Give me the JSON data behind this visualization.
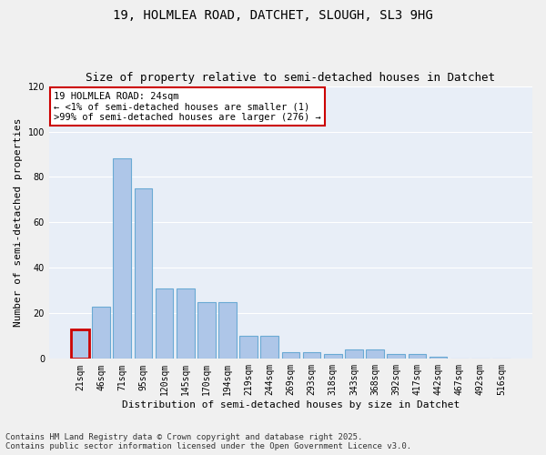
{
  "title1": "19, HOLMLEA ROAD, DATCHET, SLOUGH, SL3 9HG",
  "title2": "Size of property relative to semi-detached houses in Datchet",
  "xlabel": "Distribution of semi-detached houses by size in Datchet",
  "ylabel": "Number of semi-detached properties",
  "categories": [
    "21sqm",
    "46sqm",
    "71sqm",
    "95sqm",
    "120sqm",
    "145sqm",
    "170sqm",
    "194sqm",
    "219sqm",
    "244sqm",
    "269sqm",
    "293sqm",
    "318sqm",
    "343sqm",
    "368sqm",
    "392sqm",
    "417sqm",
    "442sqm",
    "467sqm",
    "492sqm",
    "516sqm"
  ],
  "values": [
    13,
    23,
    88,
    75,
    31,
    31,
    25,
    25,
    10,
    10,
    3,
    3,
    2,
    4,
    4,
    2,
    2,
    1,
    0,
    0,
    0
  ],
  "bar_color": "#aec6e8",
  "bar_edge_color": "#6aaad4",
  "highlight_bar_index": 0,
  "highlight_bar_edge_color": "#cc0000",
  "annotation_text": "19 HOLMLEA ROAD: 24sqm\n← <1% of semi-detached houses are smaller (1)\n>99% of semi-detached houses are larger (276) →",
  "annotation_box_color": "#ffffff",
  "annotation_box_edge_color": "#cc0000",
  "ylim": [
    0,
    120
  ],
  "yticks": [
    0,
    20,
    40,
    60,
    80,
    100,
    120
  ],
  "bg_color": "#e8eef7",
  "fig_bg_color": "#f0f0f0",
  "footer_text": "Contains HM Land Registry data © Crown copyright and database right 2025.\nContains public sector information licensed under the Open Government Licence v3.0.",
  "title1_fontsize": 10,
  "title2_fontsize": 9,
  "xlabel_fontsize": 8,
  "ylabel_fontsize": 8,
  "tick_fontsize": 7,
  "annotation_fontsize": 7.5,
  "footer_fontsize": 6.5
}
